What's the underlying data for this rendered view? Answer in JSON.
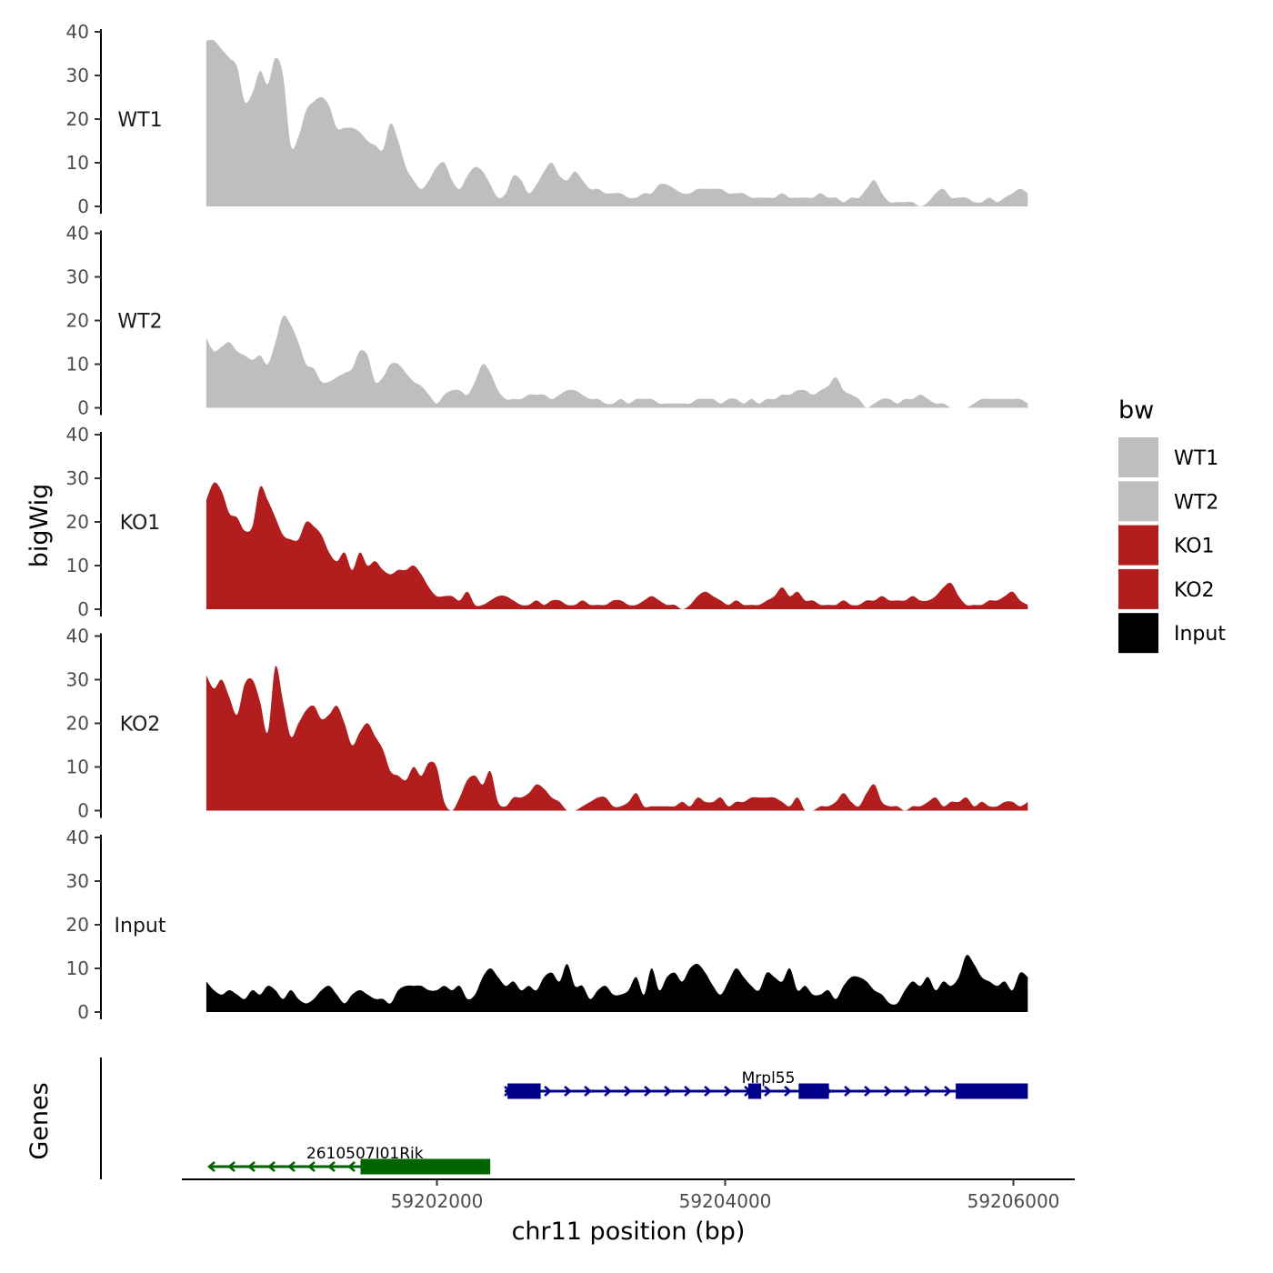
{
  "chart_data": {
    "type": "area",
    "ylabel": "bigWig",
    "genes_label": "Genes",
    "xlabel": "chr11 position (bp)",
    "xlim": [
      59200000,
      59206200
    ],
    "data_range": [
      59200400,
      59206100
    ],
    "ylim": [
      0,
      40
    ],
    "yticks": [
      0,
      10,
      20,
      30,
      40
    ],
    "xticks": [
      59202000,
      59204000,
      59206000
    ],
    "xtick_labels": [
      "59202000",
      "59204000",
      "59206000"
    ],
    "grid": false,
    "legend": {
      "title": "bw",
      "position": "right",
      "entries": [
        {
          "label": "WT1",
          "color": "#bebebe"
        },
        {
          "label": "WT2",
          "color": "#bebebe"
        },
        {
          "label": "KO1",
          "color": "#b21e1e"
        },
        {
          "label": "KO2",
          "color": "#b21e1e"
        },
        {
          "label": "Input",
          "color": "#000000"
        }
      ]
    },
    "tracks": [
      {
        "name": "WT1",
        "color": "#bebebe",
        "values": [
          38,
          38,
          36,
          34,
          32,
          24,
          26,
          31,
          28,
          34,
          30,
          14,
          16,
          22,
          24,
          25,
          23,
          18,
          18,
          18,
          17,
          15,
          14,
          13,
          19,
          15,
          9,
          6,
          4,
          6,
          9,
          10,
          6,
          4,
          7,
          9,
          8,
          5,
          2,
          3,
          7,
          6,
          3,
          5,
          8,
          10,
          7,
          6,
          8,
          6,
          4,
          4,
          3,
          3,
          3,
          2,
          2,
          3,
          3,
          5,
          5,
          4,
          3,
          3,
          4,
          4,
          4,
          4,
          3,
          3,
          3,
          2,
          2,
          2,
          2,
          3,
          2,
          2,
          2,
          2,
          3,
          2,
          2,
          1,
          2,
          2,
          4,
          6,
          3,
          1,
          1,
          1,
          1,
          0,
          1,
          3,
          4,
          2,
          2,
          2,
          1,
          1,
          2,
          1,
          2,
          3,
          4,
          3
        ]
      },
      {
        "name": "WT2",
        "color": "#bebebe",
        "values": [
          16,
          13,
          14,
          15,
          13,
          12,
          11,
          12,
          10,
          15,
          21,
          19,
          15,
          10,
          9,
          6,
          6,
          7,
          8,
          9,
          13,
          12,
          6,
          7,
          10,
          10,
          8,
          6,
          5,
          3,
          1,
          3,
          4,
          4,
          3,
          6,
          10,
          8,
          4,
          2,
          2,
          2,
          3,
          3,
          3,
          2,
          3,
          4,
          4,
          3,
          2,
          2,
          1,
          1,
          2,
          1,
          2,
          2,
          2,
          1,
          1,
          1,
          1,
          1,
          2,
          2,
          2,
          1,
          2,
          2,
          1,
          2,
          1,
          2,
          2,
          3,
          3,
          4,
          4,
          3,
          4,
          5,
          7,
          4,
          3,
          2,
          0,
          1,
          2,
          2,
          1,
          2,
          2,
          3,
          2,
          1,
          1,
          0,
          0,
          0,
          1,
          2,
          2,
          2,
          2,
          2,
          2,
          1
        ]
      },
      {
        "name": "KO1",
        "color": "#b21e1e",
        "values": [
          25,
          29,
          27,
          22,
          21,
          18,
          19,
          28,
          25,
          21,
          17,
          16,
          16,
          20,
          19,
          17,
          13,
          11,
          13,
          9,
          13,
          10,
          11,
          9,
          8,
          9,
          9,
          10,
          8,
          5,
          3,
          3,
          3,
          2,
          4,
          1,
          1,
          2,
          3,
          3,
          2,
          1,
          1,
          2,
          1,
          2,
          2,
          1,
          1,
          2,
          1,
          1,
          1,
          2,
          2,
          1,
          1,
          2,
          3,
          2,
          1,
          1,
          0,
          1,
          3,
          4,
          3,
          2,
          1,
          2,
          1,
          1,
          1,
          2,
          3,
          5,
          3,
          4,
          2,
          2,
          1,
          1,
          1,
          2,
          1,
          1,
          2,
          2,
          3,
          2,
          2,
          2,
          3,
          2,
          2,
          3,
          5,
          6,
          3,
          1,
          1,
          1,
          2,
          2,
          3,
          4,
          2,
          1
        ]
      },
      {
        "name": "KO2",
        "color": "#b21e1e",
        "values": [
          31,
          28,
          30,
          26,
          22,
          29,
          30,
          25,
          18,
          33,
          25,
          17,
          20,
          23,
          24,
          21,
          22,
          24,
          20,
          15,
          18,
          20,
          17,
          14,
          9,
          8,
          7,
          10,
          8,
          11,
          10,
          2,
          0,
          3,
          7,
          8,
          6,
          9,
          2,
          1,
          3,
          3,
          4,
          6,
          5,
          3,
          2,
          0,
          0,
          1,
          2,
          3,
          3,
          1,
          1,
          2,
          4,
          1,
          1,
          1,
          1,
          1,
          2,
          1,
          3,
          2,
          2,
          3,
          1,
          2,
          2,
          3,
          3,
          3,
          3,
          2,
          1,
          3,
          0,
          0,
          1,
          1,
          2,
          4,
          2,
          1,
          4,
          6,
          2,
          1,
          1,
          0,
          1,
          1,
          2,
          3,
          1,
          2,
          2,
          3,
          1,
          2,
          1,
          1,
          2,
          2,
          1,
          2
        ]
      },
      {
        "name": "Input",
        "color": "#000000",
        "values": [
          7,
          5,
          4,
          5,
          4,
          3,
          5,
          4,
          6,
          5,
          3,
          5,
          3,
          2,
          3,
          5,
          6,
          4,
          2,
          4,
          5,
          4,
          3,
          3,
          2,
          5,
          6,
          6,
          6,
          5,
          5,
          6,
          5,
          6,
          3,
          4,
          8,
          10,
          8,
          6,
          7,
          5,
          6,
          5,
          8,
          9,
          7,
          11,
          6,
          6,
          3,
          5,
          6,
          4,
          4,
          5,
          8,
          4,
          10,
          5,
          8,
          9,
          7,
          10,
          11,
          9,
          6,
          4,
          7,
          10,
          8,
          6,
          5,
          9,
          8,
          7,
          10,
          5,
          6,
          4,
          4,
          5,
          3,
          6,
          8,
          8,
          7,
          5,
          4,
          2,
          2,
          5,
          7,
          6,
          8,
          5,
          7,
          6,
          8,
          13,
          11,
          8,
          7,
          6,
          7,
          5,
          9,
          8
        ]
      }
    ],
    "genes": [
      {
        "name": "Mrpl55",
        "strand": "+",
        "start": 59202470,
        "end": 59206100,
        "color": "#00008b",
        "exons": [
          [
            59202490,
            59202720
          ],
          [
            59204160,
            59204250
          ],
          [
            59204510,
            59204720
          ],
          [
            59205600,
            59206100
          ]
        ]
      },
      {
        "name": "2610507I01Rik",
        "strand": "-",
        "start": 59200420,
        "end": 59202370,
        "color": "#006400",
        "exons": [
          [
            59201470,
            59202370
          ]
        ]
      }
    ]
  }
}
